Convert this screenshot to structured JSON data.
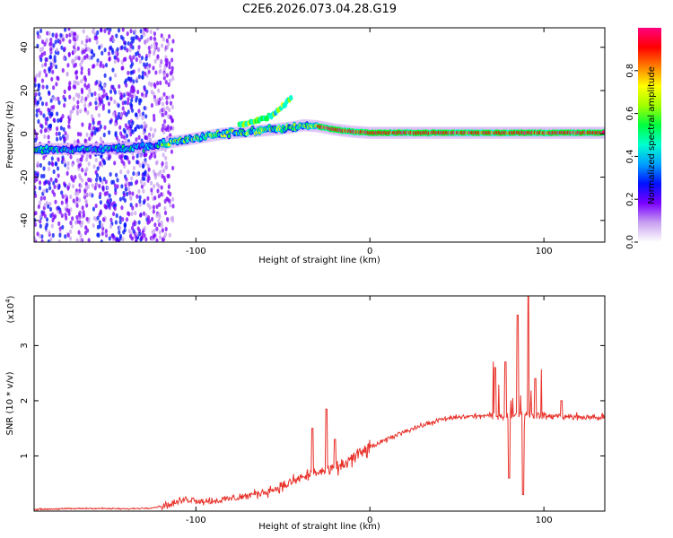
{
  "title": "C2E6.2026.073.04.28.G19",
  "chart_data": [
    {
      "type": "heatmap",
      "xlabel": "Height of straight line (km)",
      "ylabel": "Frequency (Hz)",
      "xlim": [
        -193,
        135
      ],
      "ylim": [
        -50,
        49
      ],
      "xticks": [
        -100,
        0,
        100
      ],
      "xtick_labels": [
        "-100",
        "0",
        "100"
      ],
      "yticks": [
        -40,
        -20,
        0,
        20,
        40
      ],
      "ytick_labels": [
        "-40",
        "-20",
        "0",
        "20",
        "40"
      ],
      "colorbar": {
        "label": "Normalized spectral amplitude",
        "range": [
          0,
          1
        ],
        "ticks": [
          0.0,
          0.2,
          0.4,
          0.6,
          0.8
        ],
        "tick_labels": [
          "0.0",
          "0.2",
          "0.4",
          "0.6",
          "0.8"
        ],
        "colors": [
          "#ffffff",
          "#c8a0f0",
          "#7a00ff",
          "#0010ff",
          "#00a0ff",
          "#00ffd0",
          "#00ff40",
          "#a0ff00",
          "#ffff00",
          "#ff8000",
          "#ff0000",
          "#ff0080"
        ]
      },
      "traces": [
        {
          "name": "",
          "x": [
            -193,
            -175,
            -160,
            -140,
            -125,
            -115,
            -100,
            -85,
            -70,
            -55,
            -45,
            -38,
            -30,
            -20,
            -10,
            0,
            20,
            60,
            100,
            135
          ],
          "y": [
            -7,
            -7,
            -7,
            -6.5,
            -6,
            -4,
            -2,
            0,
            1,
            2,
            3,
            4,
            3.5,
            2,
            1,
            0.5,
            0.5,
            0.5,
            0.5,
            0.5
          ]
        },
        {
          "name": "",
          "x": [
            -75,
            -65,
            -55,
            -50,
            -45
          ],
          "y": [
            4,
            6,
            9,
            13,
            17
          ]
        }
      ],
      "grid": false
    },
    {
      "type": "line",
      "xlabel": "Height of straight line (km)",
      "ylabel": "SNR (10 * v/v)",
      "yscale_label": "(x10",
      "yscale_exponent": "4",
      "yscale_suffix": ")",
      "xlim": [
        -193,
        135
      ],
      "ylim": [
        0,
        3.9
      ],
      "xticks": [
        -100,
        0,
        100
      ],
      "xtick_labels": [
        "-100",
        "0",
        "100"
      ],
      "yticks": [
        1,
        2,
        3
      ],
      "ytick_labels": [
        "1",
        "2",
        "3"
      ],
      "color": "#e8312a",
      "series": [
        {
          "name": "",
          "x": [
            -193,
            -180,
            -160,
            -140,
            -125,
            -115,
            -105,
            -95,
            -85,
            -70,
            -60,
            -50,
            -40,
            -30,
            -20,
            -10,
            0,
            10,
            20,
            30,
            40,
            50,
            60,
            70,
            80,
            90,
            100,
            110,
            120,
            135
          ],
          "y": [
            0.03,
            0.04,
            0.05,
            0.04,
            0.06,
            0.12,
            0.22,
            0.18,
            0.2,
            0.28,
            0.35,
            0.45,
            0.6,
            0.7,
            0.75,
            0.95,
            1.15,
            1.3,
            1.45,
            1.55,
            1.65,
            1.7,
            1.72,
            1.73,
            1.74,
            1.75,
            1.72,
            1.72,
            1.7,
            1.7
          ]
        }
      ],
      "spikes": [
        {
          "x": -33,
          "y": 1.5
        },
        {
          "x": -25,
          "y": 1.85
        },
        {
          "x": -20,
          "y": 1.3
        },
        {
          "x": 72,
          "y": 2.6
        },
        {
          "x": 78,
          "y": 2.7
        },
        {
          "x": 85,
          "y": 3.55
        },
        {
          "x": 91,
          "y": 3.9
        },
        {
          "x": 95,
          "y": 2.4
        },
        {
          "x": 110,
          "y": 2.0
        }
      ],
      "dips": [
        {
          "x": 88,
          "y": 0.3
        },
        {
          "x": 80,
          "y": 0.6
        }
      ],
      "grid": false
    }
  ]
}
